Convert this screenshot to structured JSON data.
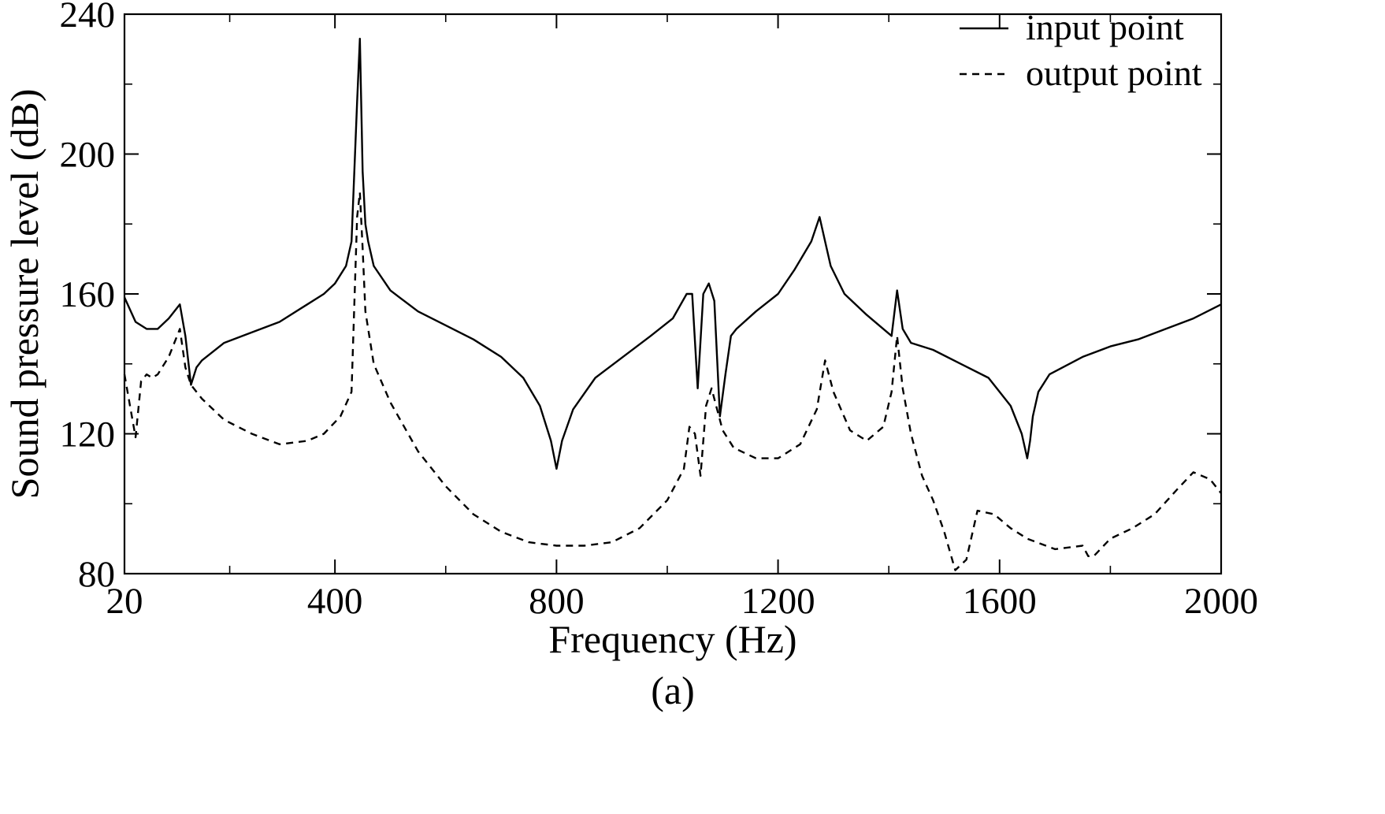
{
  "chart_data": {
    "type": "line",
    "xlabel": "Frequency (Hz)",
    "ylabel": "Sound pressure level (dB)",
    "caption": "(a)",
    "xlim": [
      20,
      2000
    ],
    "ylim": [
      80,
      240
    ],
    "x_ticks": [
      20,
      400,
      800,
      1200,
      1600,
      2000
    ],
    "y_ticks": [
      80,
      120,
      160,
      200,
      240
    ],
    "legend_position": "top-right",
    "grid": false,
    "series": [
      {
        "name": "input point",
        "line_style": "solid",
        "color": "#000000",
        "x": [
          20,
          40,
          60,
          80,
          100,
          120,
          130,
          140,
          150,
          160,
          200,
          250,
          300,
          350,
          380,
          400,
          420,
          430,
          440,
          445,
          450,
          455,
          460,
          470,
          500,
          550,
          600,
          650,
          700,
          740,
          770,
          790,
          800,
          810,
          830,
          870,
          920,
          970,
          1010,
          1035,
          1045,
          1055,
          1065,
          1075,
          1085,
          1095,
          1105,
          1115,
          1125,
          1160,
          1200,
          1230,
          1260,
          1275,
          1285,
          1295,
          1320,
          1360,
          1390,
          1405,
          1415,
          1425,
          1440,
          1480,
          1530,
          1580,
          1620,
          1640,
          1650,
          1655,
          1660,
          1670,
          1690,
          1750,
          1800,
          1850,
          1900,
          1950,
          2000
        ],
        "values": [
          159,
          152,
          150,
          150,
          153,
          157,
          148,
          134,
          139,
          141,
          146,
          149,
          152,
          157,
          160,
          163,
          168,
          175,
          215,
          233,
          195,
          180,
          175,
          168,
          161,
          155,
          151,
          147,
          142,
          136,
          128,
          118,
          110,
          118,
          127,
          136,
          142,
          148,
          153,
          160,
          160,
          133,
          160,
          163,
          158,
          125,
          137,
          148,
          150,
          155,
          160,
          167,
          175,
          182,
          175,
          168,
          160,
          154,
          150,
          148,
          161,
          150,
          146,
          144,
          140,
          136,
          128,
          120,
          113,
          118,
          125,
          132,
          137,
          142,
          145,
          147,
          150,
          153,
          157
        ]
      },
      {
        "name": "output point",
        "line_style": "dashed",
        "color": "#000000",
        "x": [
          20,
          30,
          40,
          50,
          60,
          70,
          80,
          100,
          120,
          130,
          140,
          160,
          200,
          250,
          300,
          350,
          380,
          410,
          430,
          440,
          445,
          450,
          455,
          470,
          500,
          550,
          600,
          650,
          700,
          750,
          800,
          850,
          900,
          950,
          1000,
          1030,
          1040,
          1050,
          1060,
          1070,
          1080,
          1090,
          1100,
          1120,
          1160,
          1200,
          1240,
          1270,
          1285,
          1300,
          1330,
          1360,
          1390,
          1405,
          1415,
          1425,
          1440,
          1460,
          1480,
          1500,
          1520,
          1540,
          1560,
          1590,
          1620,
          1650,
          1700,
          1750,
          1760,
          1770,
          1800,
          1840,
          1880,
          1920,
          1950,
          1980,
          2000
        ],
        "values": [
          137,
          128,
          119,
          135,
          137,
          136,
          137,
          142,
          150,
          139,
          134,
          130,
          124,
          120,
          117,
          118,
          120,
          125,
          132,
          182,
          189,
          173,
          155,
          140,
          129,
          115,
          105,
          97,
          92,
          89,
          88,
          88,
          89,
          93,
          101,
          110,
          122,
          120,
          108,
          128,
          133,
          127,
          121,
          116,
          113,
          113,
          117,
          127,
          141,
          132,
          121,
          118,
          122,
          132,
          148,
          133,
          120,
          108,
          101,
          92,
          81,
          84,
          98,
          97,
          93,
          90,
          87,
          88,
          85,
          85,
          90,
          93,
          97,
          104,
          109,
          107,
          103
        ]
      }
    ]
  }
}
